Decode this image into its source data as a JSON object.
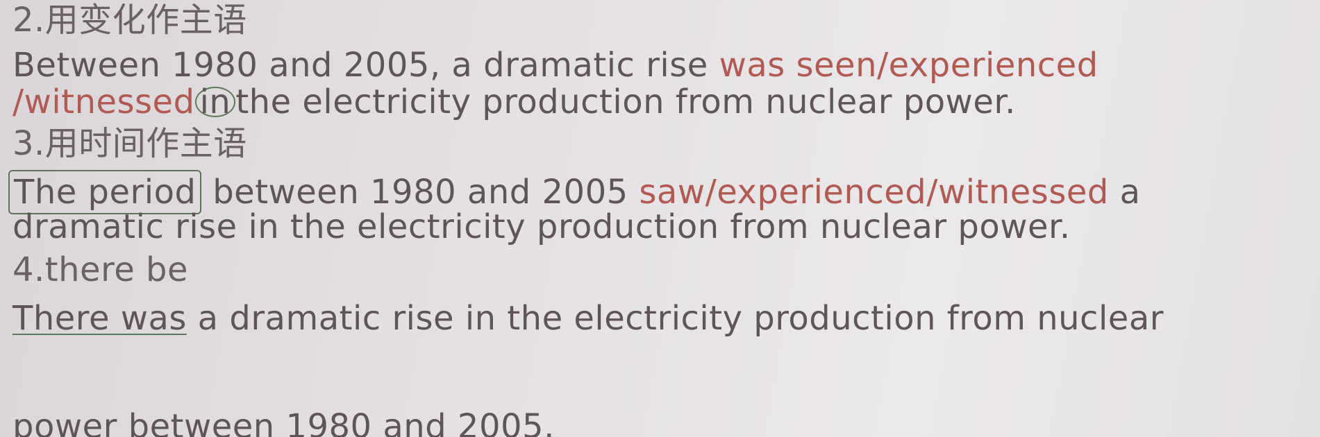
{
  "section2": {
    "heading": "2.用变化作主语",
    "line1_plain": "Between 1980 and 2005, a dramatic rise ",
    "line1_red": "was seen/experienced",
    "line2_red": "/witnessed",
    "line2_circled": "in",
    "line2_plain": "the electricity production from nuclear power."
  },
  "section3": {
    "heading": "3.用时间作主语",
    "line1_boxed": "The period",
    "line1_plain": " between 1980 and 2005 ",
    "line1_red": "saw/experienced/witnessed",
    "line1_end": " a",
    "line2": "dramatic rise in the electricity production from nuclear power."
  },
  "section4": {
    "heading": "4.there be",
    "line1_underlined": "There was",
    "line1_plain": " a dramatic rise in the electricity production from nuclear",
    "line2": "power between 1980 and 2005."
  }
}
